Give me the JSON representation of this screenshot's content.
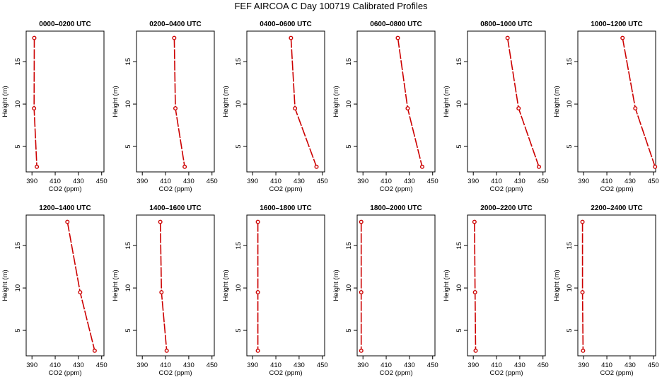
{
  "title": "FEF AIRCOA C  Day 100719  Calibrated Profiles",
  "chart_data": {
    "type": "line",
    "xlabel": "CO2 (ppm)",
    "ylabel": "Height (m)",
    "xlim": [
      385,
      452
    ],
    "ylim": [
      2,
      18.6
    ],
    "xticks": [
      390,
      410,
      430,
      450
    ],
    "yticks": [
      5,
      10,
      15
    ],
    "line_color": "#cc0000",
    "panels": [
      {
        "title": "0000–0200 UTC",
        "x": [
          392.0,
          391.8,
          394.2
        ],
        "y": [
          17.8,
          9.5,
          2.6
        ]
      },
      {
        "title": "0200–0400 UTC",
        "x": [
          417.5,
          418.5,
          426.5
        ],
        "y": [
          17.8,
          9.5,
          2.6
        ]
      },
      {
        "title": "0400–0600 UTC",
        "x": [
          423.0,
          426.5,
          445.0
        ],
        "y": [
          17.8,
          9.5,
          2.6
        ]
      },
      {
        "title": "0600–0800 UTC",
        "x": [
          420.0,
          428.5,
          441.0
        ],
        "y": [
          17.8,
          9.5,
          2.6
        ]
      },
      {
        "title": "0800–1000 UTC",
        "x": [
          419.5,
          429.0,
          446.5
        ],
        "y": [
          17.8,
          9.5,
          2.6
        ]
      },
      {
        "title": "1000–1200 UTC",
        "x": [
          423.5,
          434.5,
          451.5
        ],
        "y": [
          17.8,
          9.5,
          2.6
        ]
      },
      {
        "title": "1200–1400 UTC",
        "x": [
          420.5,
          431.5,
          444.0
        ],
        "y": [
          17.8,
          9.5,
          2.6
        ]
      },
      {
        "title": "1400–1600 UTC",
        "x": [
          405.5,
          406.5,
          411.0
        ],
        "y": [
          17.8,
          9.5,
          2.6
        ]
      },
      {
        "title": "1600–1800 UTC",
        "x": [
          394.5,
          394.5,
          394.5
        ],
        "y": [
          17.8,
          9.5,
          2.6
        ]
      },
      {
        "title": "1800–2000 UTC",
        "x": [
          388.5,
          388.5,
          388.5
        ],
        "y": [
          17.8,
          9.5,
          2.6
        ]
      },
      {
        "title": "2000–2200 UTC",
        "x": [
          391.0,
          391.5,
          392.0
        ],
        "y": [
          17.8,
          9.5,
          2.6
        ]
      },
      {
        "title": "2200–2400 UTC",
        "x": [
          389.0,
          389.0,
          389.5
        ],
        "y": [
          17.8,
          9.5,
          2.6
        ]
      }
    ]
  }
}
